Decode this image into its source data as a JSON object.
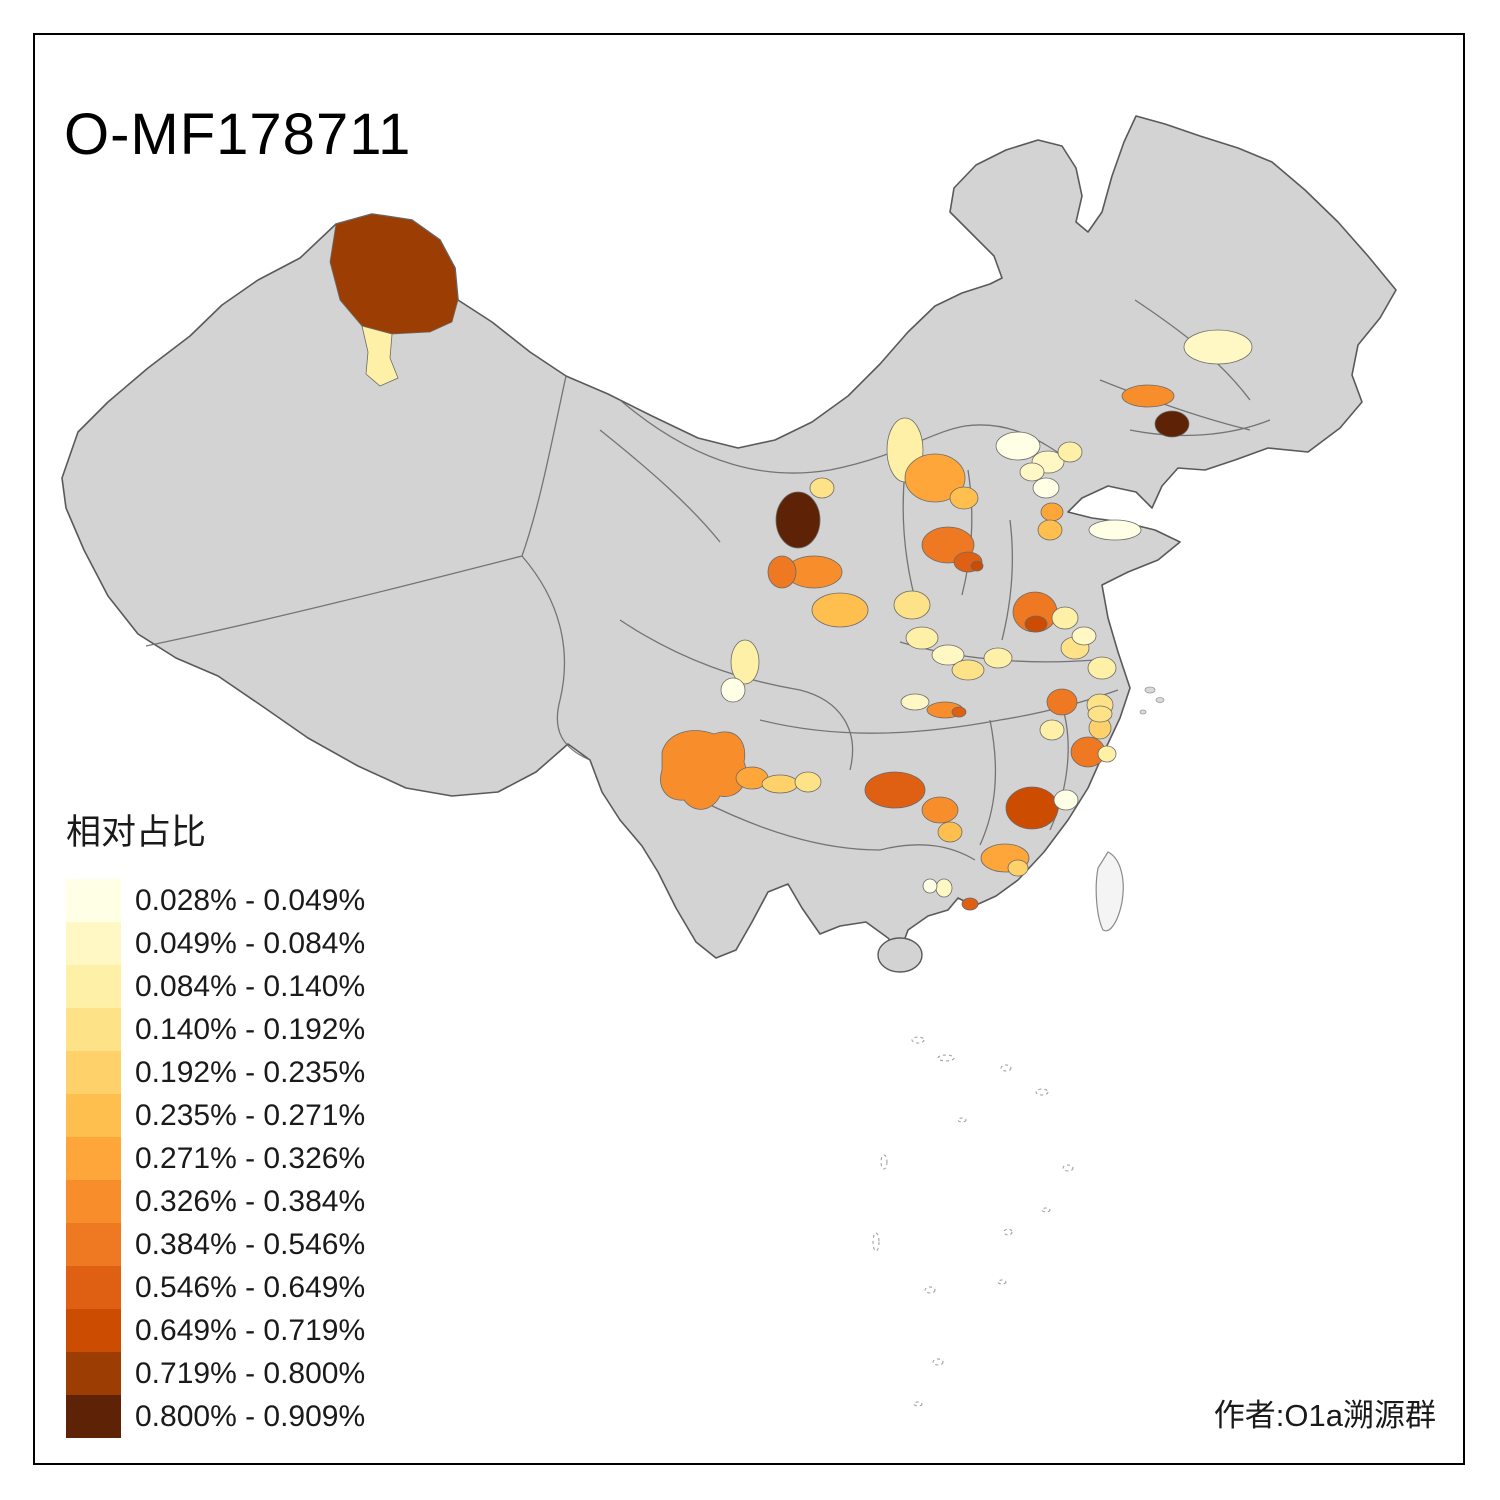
{
  "title": "O-MF178711",
  "attribution": "作者:O1a溯源群",
  "legend": {
    "title": "相对占比",
    "classes": [
      {
        "label": "0.028% - 0.049%",
        "color": "#FFFFE5"
      },
      {
        "label": "0.049% - 0.084%",
        "color": "#FFF8C5"
      },
      {
        "label": "0.084% - 0.140%",
        "color": "#FEF0A6"
      },
      {
        "label": "0.140% - 0.192%",
        "color": "#FEE287"
      },
      {
        "label": "0.192% - 0.235%",
        "color": "#FED16B"
      },
      {
        "label": "0.235% - 0.271%",
        "color": "#FEBF4F"
      },
      {
        "label": "0.271% - 0.326%",
        "color": "#FEA63A"
      },
      {
        "label": "0.326% - 0.384%",
        "color": "#F88E2B"
      },
      {
        "label": "0.384% - 0.546%",
        "color": "#EF7822"
      },
      {
        "label": "0.546% - 0.649%",
        "color": "#E06013"
      },
      {
        "label": "0.649% - 0.719%",
        "color": "#CC4C02"
      },
      {
        "label": "0.719% - 0.800%",
        "color": "#9C3D03"
      },
      {
        "label": "0.800% - 0.909%",
        "color": "#5E2306"
      }
    ]
  },
  "map": {
    "land_color": "#D3D3D3",
    "outline_color": "#595959",
    "province_border_color": "#6A6A6A",
    "island_outline_color": "#9A9A9A",
    "background": "#FFFFFF"
  }
}
